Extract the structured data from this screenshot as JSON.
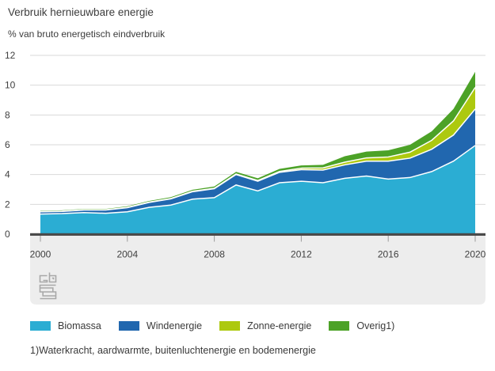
{
  "header": {
    "title": "Verbruik hernieuwbare energie",
    "subtitle": "% van bruto energetisch eindverbruik"
  },
  "footnote": "1)Waterkracht, aardwarmte, buitenluchtenergie en bodemenergie",
  "logo_name": "cbs-logo",
  "chart_data": {
    "type": "area",
    "stacked": true,
    "title": "Verbruik hernieuwbare energie",
    "subtitle": "% van bruto energetisch eindverbruik",
    "xlabel": "",
    "ylabel": "% van bruto energetisch eindverbruik",
    "x": [
      2000,
      2001,
      2002,
      2003,
      2004,
      2005,
      2006,
      2007,
      2008,
      2009,
      2010,
      2011,
      2012,
      2013,
      2014,
      2015,
      2016,
      2017,
      2018,
      2019,
      2020
    ],
    "series": [
      {
        "name": "Biomassa",
        "color": "#2BADD3",
        "values": [
          1.35,
          1.38,
          1.45,
          1.4,
          1.5,
          1.8,
          1.95,
          2.35,
          2.45,
          3.3,
          2.9,
          3.45,
          3.55,
          3.45,
          3.75,
          3.9,
          3.7,
          3.8,
          4.2,
          4.9,
          5.95
        ]
      },
      {
        "name": "Windenergie",
        "color": "#2167AF",
        "values": [
          0.15,
          0.15,
          0.17,
          0.22,
          0.28,
          0.33,
          0.42,
          0.5,
          0.6,
          0.7,
          0.65,
          0.7,
          0.78,
          0.85,
          0.9,
          1.0,
          1.2,
          1.3,
          1.5,
          1.75,
          2.45
        ]
      },
      {
        "name": "Zonne-energie",
        "color": "#ADC90F",
        "values": [
          0.01,
          0.01,
          0.01,
          0.01,
          0.02,
          0.02,
          0.02,
          0.03,
          0.03,
          0.04,
          0.05,
          0.06,
          0.1,
          0.15,
          0.18,
          0.22,
          0.28,
          0.4,
          0.6,
          0.95,
          1.45
        ]
      },
      {
        "name": "Overig1)",
        "color": "#4CA227",
        "values": [
          0.06,
          0.06,
          0.06,
          0.06,
          0.07,
          0.08,
          0.09,
          0.1,
          0.12,
          0.14,
          0.15,
          0.17,
          0.18,
          0.2,
          0.4,
          0.42,
          0.45,
          0.5,
          0.6,
          0.8,
          1.05
        ]
      }
    ],
    "ylim": [
      0,
      12
    ],
    "y_ticks": [
      0,
      2,
      4,
      6,
      8,
      10,
      12
    ],
    "x_ticks": [
      2000,
      2004,
      2008,
      2012,
      2016,
      2020
    ],
    "grid": "horizontal",
    "legend_position": "bottom",
    "separator_color": "#ffffff",
    "axis_bar_color": "#4A4A4A",
    "gridline_color": "#DADADA",
    "axis_band_color": "#EDEDED",
    "tick_color": "#9B9B9B",
    "label_color": "#3F3F3F"
  }
}
